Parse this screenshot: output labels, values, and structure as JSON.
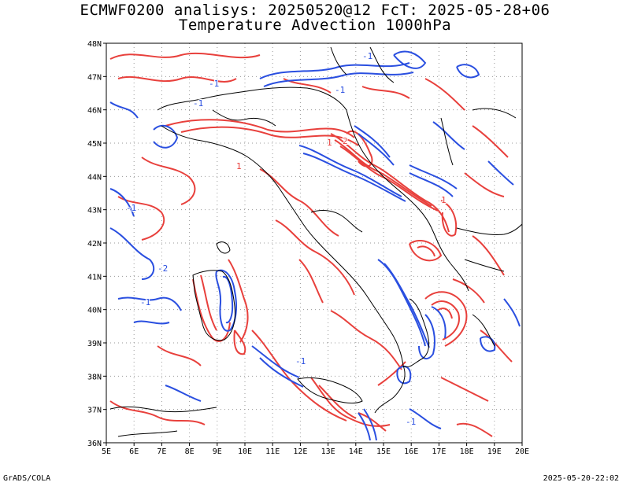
{
  "header": {
    "title_line1": "ECMWF0200 analisys: 20250520@12 FcT: 2025-05-28+06",
    "title_line2": "Temperature Advection 1000hPa"
  },
  "map": {
    "lon_labels": [
      "5E",
      "6E",
      "7E",
      "8E",
      "9E",
      "10E",
      "11E",
      "12E",
      "13E",
      "14E",
      "15E",
      "16E",
      "17E",
      "18E",
      "19E",
      "20E"
    ],
    "lat_labels": [
      "48N",
      "47N",
      "46N",
      "45N",
      "44N",
      "43N",
      "42N",
      "41N",
      "40N",
      "39N",
      "38N",
      "37N",
      "36N"
    ],
    "contour_labels": [
      "-1",
      "-1",
      "-1",
      "-1",
      "-1",
      "-2",
      "-1",
      "-1",
      "-1",
      "1",
      "1",
      "2",
      "1"
    ],
    "colors": {
      "positive": "#e8403c",
      "negative": "#2a4fe0",
      "border": "#000000",
      "grid": "#9a9a9a"
    }
  },
  "footer": {
    "left": "GrADS/COLA",
    "right": "2025-05-20-22:02"
  }
}
